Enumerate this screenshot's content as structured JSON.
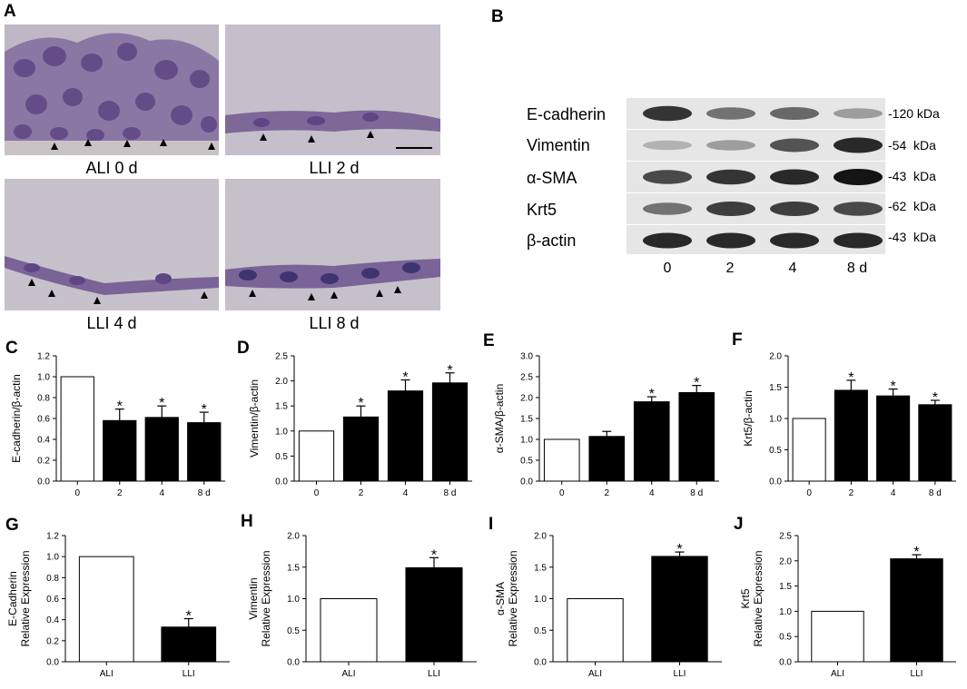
{
  "panel_letters": {
    "A": "A",
    "B": "B",
    "C": "C",
    "D": "D",
    "E": "E",
    "F": "F",
    "G": "G",
    "H": "H",
    "I": "I",
    "J": "J"
  },
  "micrographs": [
    {
      "label": "ALI 0 d"
    },
    {
      "label": "LLI 2 d"
    },
    {
      "label": "LLI 4 d"
    },
    {
      "label": "LLI 8 d"
    }
  ],
  "western_blot": {
    "proteins": [
      "E-cadherin",
      "Vimentin",
      "α-SMA",
      "Krt5",
      "β-actin"
    ],
    "sizes": [
      "-120 kDa",
      "-54  kDa",
      "-43  kDa",
      "-62  kDa",
      "-43  kDa"
    ],
    "lanes": [
      "0",
      "2",
      "4",
      "8 d"
    ],
    "band_intensity": [
      [
        0.85,
        0.55,
        0.6,
        0.35
      ],
      [
        0.25,
        0.35,
        0.7,
        0.9
      ],
      [
        0.75,
        0.85,
        0.9,
        1.0
      ],
      [
        0.55,
        0.8,
        0.8,
        0.75
      ],
      [
        0.9,
        0.9,
        0.9,
        0.9
      ]
    ]
  },
  "chart_data": [
    {
      "id": "C",
      "type": "bar",
      "ylabel": "E-cadherin/β-actin",
      "categories": [
        "0",
        "2",
        "4",
        "8 d"
      ],
      "values": [
        1.0,
        0.58,
        0.61,
        0.56
      ],
      "errors": [
        0,
        0.11,
        0.11,
        0.1
      ],
      "significant": [
        false,
        true,
        true,
        true
      ],
      "ylim": [
        0,
        1.2
      ],
      "yticks": [
        "0.0",
        "0.2",
        "0.4",
        "0.6",
        "0.8",
        "1.0",
        "1.2"
      ],
      "tick_step": 0.2,
      "fills": [
        "#ffffff",
        "#000000",
        "#000000",
        "#000000"
      ]
    },
    {
      "id": "D",
      "type": "bar",
      "ylabel": "Vimentin/β-actin",
      "categories": [
        "0",
        "2",
        "4",
        "8 d"
      ],
      "values": [
        1.0,
        1.28,
        1.8,
        1.96
      ],
      "errors": [
        0,
        0.22,
        0.22,
        0.2
      ],
      "significant": [
        false,
        true,
        true,
        true
      ],
      "ylim": [
        0,
        2.5
      ],
      "yticks": [
        "0.0",
        "0.5",
        "1.0",
        "1.5",
        "2.0",
        "2.5"
      ],
      "tick_step": 0.5,
      "fills": [
        "#ffffff",
        "#000000",
        "#000000",
        "#000000"
      ]
    },
    {
      "id": "E",
      "type": "bar",
      "ylabel": "α-SMA/β-actin",
      "categories": [
        "0",
        "2",
        "4",
        "8 d"
      ],
      "values": [
        1.0,
        1.07,
        1.9,
        2.12
      ],
      "errors": [
        0,
        0.12,
        0.12,
        0.17
      ],
      "significant": [
        false,
        false,
        true,
        true
      ],
      "ylim": [
        0,
        3.0
      ],
      "yticks": [
        "0.0",
        "0.5",
        "1.0",
        "1.5",
        "2.0",
        "2.5",
        "3.0"
      ],
      "tick_step": 0.5,
      "fills": [
        "#ffffff",
        "#000000",
        "#000000",
        "#000000"
      ]
    },
    {
      "id": "F",
      "type": "bar",
      "ylabel": "Krt5/β-actin",
      "categories": [
        "0",
        "2",
        "4",
        "8 d"
      ],
      "values": [
        1.0,
        1.45,
        1.36,
        1.22
      ],
      "errors": [
        0,
        0.16,
        0.11,
        0.07
      ],
      "significant": [
        false,
        true,
        true,
        true
      ],
      "ylim": [
        0,
        2.0
      ],
      "yticks": [
        "0.0",
        "0.5",
        "1.0",
        "1.5",
        "2.0"
      ],
      "tick_step": 0.5,
      "fills": [
        "#ffffff",
        "#000000",
        "#000000",
        "#000000"
      ]
    },
    {
      "id": "G",
      "type": "bar",
      "ylabel": [
        "E-Cadherin",
        "Relative Expression"
      ],
      "categories": [
        "ALI",
        "LLI"
      ],
      "values": [
        1.0,
        0.33
      ],
      "errors": [
        0,
        0.08
      ],
      "significant": [
        false,
        true
      ],
      "ylim": [
        0,
        1.2
      ],
      "yticks": [
        "0.0",
        "0.2",
        "0.4",
        "0.6",
        "0.8",
        "1.0",
        "1.2"
      ],
      "tick_step": 0.2,
      "fills": [
        "#ffffff",
        "#000000"
      ]
    },
    {
      "id": "H",
      "type": "bar",
      "ylabel": [
        "Vimentin",
        "Relative Expression"
      ],
      "categories": [
        "ALI",
        "LLI"
      ],
      "values": [
        1.0,
        1.49
      ],
      "errors": [
        0,
        0.16
      ],
      "significant": [
        false,
        true
      ],
      "ylim": [
        0,
        2.0
      ],
      "yticks": [
        "0.0",
        "0.5",
        "1.0",
        "1.5",
        "2.0"
      ],
      "tick_step": 0.5,
      "fills": [
        "#ffffff",
        "#000000"
      ]
    },
    {
      "id": "I",
      "type": "bar",
      "ylabel": [
        "α-SMA",
        "Relative Expression"
      ],
      "categories": [
        "ALI",
        "LLI"
      ],
      "values": [
        1.0,
        1.67
      ],
      "errors": [
        0,
        0.07
      ],
      "significant": [
        false,
        true
      ],
      "ylim": [
        0,
        2.0
      ],
      "yticks": [
        "0.0",
        "0.5",
        "1.0",
        "1.5",
        "2.0"
      ],
      "tick_step": 0.5,
      "fills": [
        "#ffffff",
        "#000000"
      ]
    },
    {
      "id": "J",
      "type": "bar",
      "ylabel": [
        "Krt5",
        "Relative Expression"
      ],
      "categories": [
        "ALI",
        "LLI"
      ],
      "values": [
        1.0,
        2.04
      ],
      "errors": [
        0,
        0.08
      ],
      "significant": [
        false,
        true
      ],
      "ylim": [
        0,
        2.5
      ],
      "yticks": [
        "0.0",
        "0.5",
        "1.0",
        "1.5",
        "2.0",
        "2.5"
      ],
      "tick_step": 0.5,
      "fills": [
        "#ffffff",
        "#000000"
      ]
    }
  ],
  "significance_marker": "*",
  "colors": {
    "micro_bg": "#b9b3c0",
    "cell_purple": "#6a4f8f",
    "membrane": "#5b4a6f",
    "bar_dark": "#000000",
    "blot_bg": "#e6e6e6"
  }
}
